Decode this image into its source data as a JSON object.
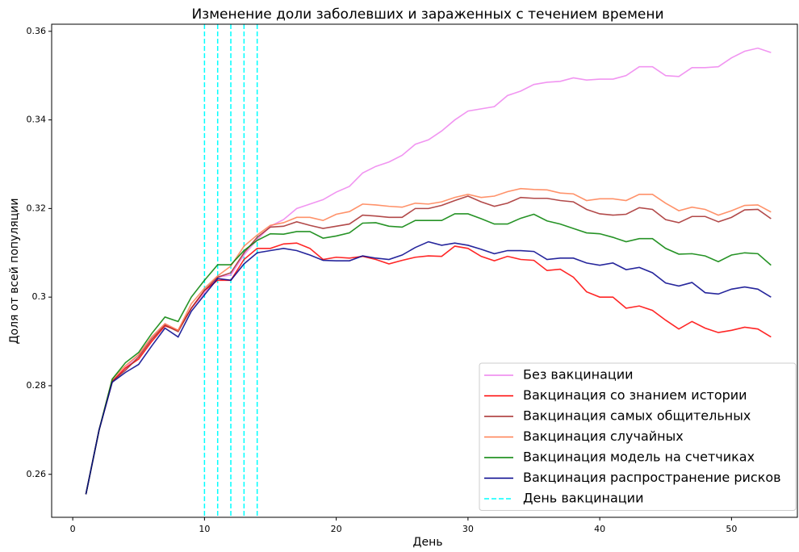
{
  "chart_data": {
    "type": "line",
    "title": "Изменение доли заболевших и зараженных с течением времени",
    "x_label": "День",
    "y_label": "Доля от всей популяции",
    "x": [
      1,
      2,
      3,
      4,
      5,
      6,
      7,
      8,
      9,
      10,
      11,
      12,
      13,
      14,
      15,
      16,
      17,
      18,
      19,
      20,
      21,
      22,
      23,
      24,
      25,
      26,
      27,
      28,
      29,
      30,
      31,
      32,
      33,
      34,
      35,
      36,
      37,
      38,
      39,
      40,
      41,
      42,
      43,
      44,
      45,
      46,
      47,
      48,
      49,
      50,
      51,
      52,
      53
    ],
    "xlim": [
      -1.6,
      55
    ],
    "xticks": [
      0,
      10,
      20,
      30,
      40,
      50
    ],
    "ylim": [
      0.2503,
      0.3616
    ],
    "yticks": [
      0.26,
      0.28,
      0.3,
      0.32,
      0.34,
      0.36
    ],
    "legend": "lower right",
    "series": [
      {
        "name": "Без вакцинации",
        "color": "violet",
        "values": [
          0.2555,
          0.27,
          0.281,
          0.284,
          0.287,
          0.291,
          0.294,
          0.2925,
          0.2975,
          0.301,
          0.3045,
          0.305,
          0.3095,
          0.313,
          0.316,
          0.3175,
          0.32,
          0.321,
          0.322,
          0.3237,
          0.325,
          0.328,
          0.3295,
          0.3305,
          0.332,
          0.3345,
          0.3355,
          0.3375,
          0.34,
          0.342,
          0.3425,
          0.343,
          0.3455,
          0.3465,
          0.348,
          0.3485,
          0.3487,
          0.3495,
          0.349,
          0.3492,
          0.3492,
          0.35,
          0.352,
          0.352,
          0.35,
          0.3498,
          0.3518,
          0.3518,
          0.352,
          0.354,
          0.3555,
          0.3562,
          0.3552
        ]
      },
      {
        "name": "Вакцинация со знанием истории",
        "color": "red",
        "values": [
          0.2555,
          0.27,
          0.281,
          0.284,
          0.286,
          0.29,
          0.2935,
          0.2925,
          0.2975,
          0.3015,
          0.3038,
          0.3038,
          0.3085,
          0.311,
          0.311,
          0.312,
          0.3122,
          0.311,
          0.3085,
          0.309,
          0.3088,
          0.3092,
          0.3085,
          0.3075,
          0.3083,
          0.309,
          0.3093,
          0.3092,
          0.3115,
          0.311,
          0.3092,
          0.3082,
          0.3092,
          0.3085,
          0.3083,
          0.306,
          0.3063,
          0.3045,
          0.3012,
          0.3,
          0.3,
          0.2975,
          0.298,
          0.297,
          0.2948,
          0.2928,
          0.2945,
          0.293,
          0.292,
          0.2925,
          0.2932,
          0.2928,
          0.291
        ]
      },
      {
        "name": "Вакцинация самых общительных",
        "color": "brown",
        "values": [
          0.2555,
          0.27,
          0.281,
          0.2835,
          0.2865,
          0.2905,
          0.2937,
          0.2922,
          0.2975,
          0.3015,
          0.3045,
          0.3055,
          0.31,
          0.3135,
          0.3158,
          0.316,
          0.317,
          0.3162,
          0.3155,
          0.316,
          0.3165,
          0.3185,
          0.3183,
          0.318,
          0.318,
          0.32,
          0.32,
          0.3207,
          0.3218,
          0.3228,
          0.3215,
          0.3205,
          0.3212,
          0.3225,
          0.3223,
          0.3223,
          0.3218,
          0.3215,
          0.3198,
          0.3188,
          0.3185,
          0.3187,
          0.3202,
          0.3198,
          0.3175,
          0.3168,
          0.3182,
          0.3182,
          0.317,
          0.318,
          0.3197,
          0.3198,
          0.3177
        ]
      },
      {
        "name": "Вакцинация случайных",
        "color": "coral",
        "values": [
          0.2555,
          0.27,
          0.2815,
          0.2845,
          0.287,
          0.291,
          0.294,
          0.2925,
          0.2985,
          0.302,
          0.3048,
          0.307,
          0.3115,
          0.314,
          0.3162,
          0.3168,
          0.318,
          0.318,
          0.3173,
          0.3187,
          0.3193,
          0.321,
          0.3208,
          0.3205,
          0.3203,
          0.3212,
          0.321,
          0.3215,
          0.3225,
          0.3232,
          0.3225,
          0.3228,
          0.3238,
          0.3245,
          0.3243,
          0.3242,
          0.3235,
          0.3233,
          0.3218,
          0.3222,
          0.3222,
          0.3218,
          0.3232,
          0.3232,
          0.3212,
          0.3195,
          0.3203,
          0.3198,
          0.3185,
          0.3195,
          0.3207,
          0.3208,
          0.3192
        ]
      },
      {
        "name": "Вакцинация модель на счетчиках",
        "color": "green",
        "values": [
          0.2555,
          0.27,
          0.2815,
          0.2852,
          0.2875,
          0.2918,
          0.2955,
          0.2945,
          0.3,
          0.3038,
          0.3073,
          0.3073,
          0.3105,
          0.3128,
          0.3143,
          0.3142,
          0.3148,
          0.3148,
          0.3133,
          0.3138,
          0.3145,
          0.3167,
          0.3168,
          0.316,
          0.3158,
          0.3173,
          0.3173,
          0.3173,
          0.3188,
          0.3188,
          0.3177,
          0.3165,
          0.3165,
          0.3178,
          0.3187,
          0.3172,
          0.3165,
          0.3155,
          0.3145,
          0.3143,
          0.3135,
          0.3125,
          0.3132,
          0.3132,
          0.311,
          0.3097,
          0.3098,
          0.3093,
          0.308,
          0.3095,
          0.31,
          0.3098,
          0.3072
        ]
      },
      {
        "name": "Вакцинация распространение рисков",
        "color": "darkblue",
        "values": [
          0.2555,
          0.27,
          0.2808,
          0.283,
          0.2848,
          0.289,
          0.293,
          0.291,
          0.2968,
          0.3005,
          0.3042,
          0.3038,
          0.3075,
          0.31,
          0.3105,
          0.311,
          0.3105,
          0.3095,
          0.3083,
          0.3082,
          0.3082,
          0.3093,
          0.3088,
          0.3085,
          0.3095,
          0.3112,
          0.3125,
          0.3117,
          0.3122,
          0.3117,
          0.3108,
          0.3098,
          0.3105,
          0.3105,
          0.3103,
          0.3085,
          0.3088,
          0.3088,
          0.3077,
          0.3072,
          0.3077,
          0.3062,
          0.3067,
          0.3055,
          0.3032,
          0.3025,
          0.3033,
          0.301,
          0.3007,
          0.3018,
          0.3023,
          0.3018,
          0.3
        ]
      }
    ],
    "vlines": {
      "name": "День вакцинации",
      "color": "cyan",
      "x": [
        10,
        11,
        12,
        13,
        14
      ]
    }
  }
}
